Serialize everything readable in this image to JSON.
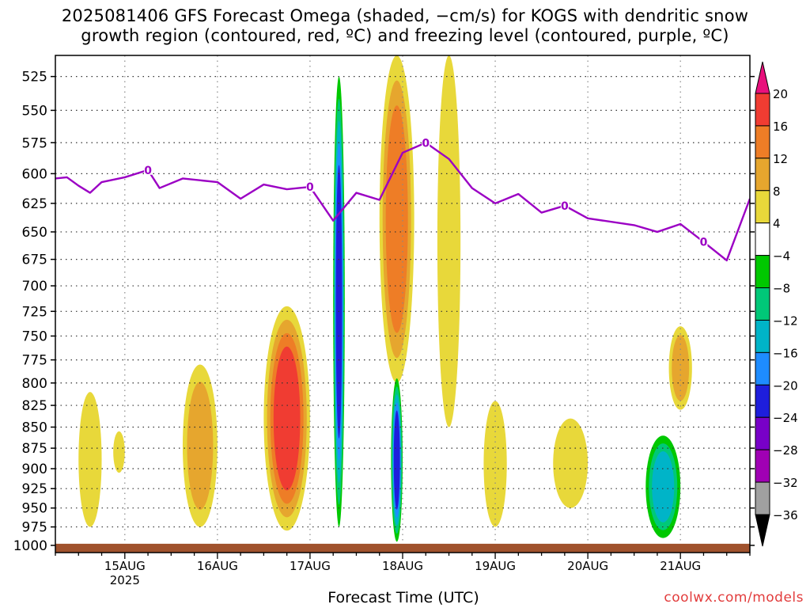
{
  "title": {
    "line1": "2025081406 GFS Forecast Omega (shaded, −cm/s) for KOGS with dendritic snow",
    "line2": "growth region (contoured, red, ºC) and freezing level (contoured, purple, ºC)"
  },
  "footer": {
    "xlabel": "Forecast Time (UTC)",
    "credit": "coolwx.com/models"
  },
  "colors": {
    "freezing_level": "#9b00c4",
    "ground": "#a0522d",
    "grid": "#333333"
  },
  "chart_data": {
    "type": "heatmap",
    "title": "2025081406 GFS Forecast Omega (shaded, −cm/s) for KOGS with dendritic snow growth region (contoured, red, ºC) and freezing level (contoured, purple, ºC)",
    "xlabel": "Forecast Time (UTC)",
    "ylabel": "",
    "x_ticks": [
      "15AUG",
      "16AUG",
      "17AUG",
      "18AUG",
      "19AUG",
      "20AUG",
      "21AUG"
    ],
    "x_subtick": "2025",
    "xlim": [
      "2025-08-14 06:00",
      "2025-08-21 18:00"
    ],
    "y_ticks": [
      525,
      550,
      575,
      600,
      625,
      650,
      675,
      700,
      725,
      750,
      775,
      800,
      825,
      850,
      875,
      900,
      925,
      950,
      975,
      1000
    ],
    "ylim": [
      1010,
      510
    ],
    "colorbar": {
      "labels": [
        20,
        16,
        12,
        8,
        4,
        -4,
        -8,
        -12,
        -16,
        -20,
        -24,
        -28,
        -32,
        -36
      ],
      "bins": [
        {
          "range": ">20",
          "color": "#e8107c"
        },
        {
          "range": "16..20",
          "color": "#f03c32"
        },
        {
          "range": "12..16",
          "color": "#ee7d26"
        },
        {
          "range": "8..12",
          "color": "#e6a62e"
        },
        {
          "range": "4..8",
          "color": "#e8d83a"
        },
        {
          "range": "-4..4",
          "color": "#ffffff"
        },
        {
          "range": "-8..-4",
          "color": "#00c800"
        },
        {
          "range": "-12..-8",
          "color": "#00c878"
        },
        {
          "range": "-16..-12",
          "color": "#00b4c8"
        },
        {
          "range": "-20..-16",
          "color": "#1e8cff"
        },
        {
          "range": "-24..-20",
          "color": "#1e1edc"
        },
        {
          "range": "-28..-24",
          "color": "#7800c8"
        },
        {
          "range": "-32..-28",
          "color": "#a000b4"
        },
        {
          "range": "-36..-32",
          "color": "#a0a0a0"
        },
        {
          "range": "<-36",
          "color": "#000000"
        }
      ]
    },
    "freezing_level_contour": {
      "label": "0",
      "points": [
        [
          "08-14 06",
          604
        ],
        [
          "08-14 09",
          603
        ],
        [
          "08-14 12",
          610
        ],
        [
          "08-14 15",
          616
        ],
        [
          "08-14 18",
          607
        ],
        [
          "08-15 00",
          603
        ],
        [
          "08-15 06",
          597
        ],
        [
          "08-15 09",
          612
        ],
        [
          "08-15 15",
          604
        ],
        [
          "08-16 00",
          607
        ],
        [
          "08-16 06",
          621
        ],
        [
          "08-16 12",
          609
        ],
        [
          "08-16 18",
          613
        ],
        [
          "08-17 00",
          611
        ],
        [
          "08-17 06",
          640
        ],
        [
          "08-17 12",
          616
        ],
        [
          "08-17 18",
          622
        ],
        [
          "08-18 00",
          583
        ],
        [
          "08-18 06",
          575
        ],
        [
          "08-18 12",
          588
        ],
        [
          "08-18 18",
          612
        ],
        [
          "08-19 00",
          625
        ],
        [
          "08-19 06",
          617
        ],
        [
          "08-19 12",
          633
        ],
        [
          "08-19 18",
          627
        ],
        [
          "08-20 00",
          638
        ],
        [
          "08-20 12",
          644
        ],
        [
          "08-20 18",
          650
        ],
        [
          "08-21 00",
          643
        ],
        [
          "08-21 06",
          659
        ],
        [
          "08-21 12",
          676
        ],
        [
          "08-21 18",
          621
        ]
      ],
      "label_times": [
        "08-15 06",
        "08-17 00",
        "08-18 06",
        "08-19 18",
        "08-21 06"
      ]
    },
    "omega_cells": [
      {
        "t0": "08-14 12",
        "t1": "08-14 18",
        "p0": 810,
        "p1": 975,
        "value": 6
      },
      {
        "t0": "08-14 21",
        "t1": "08-15 00",
        "p0": 855,
        "p1": 905,
        "value": 5
      },
      {
        "t0": "08-15 15",
        "t1": "08-16 00",
        "p0": 780,
        "p1": 975,
        "value": 10
      },
      {
        "t0": "08-16 12",
        "t1": "08-17 00",
        "p0": 720,
        "p1": 980,
        "value": 18
      },
      {
        "t0": "08-17 06",
        "t1": "08-17 09",
        "p0": 525,
        "p1": 975,
        "value": -22
      },
      {
        "t0": "08-17 18",
        "t1": "08-18 03",
        "p0": 510,
        "p1": 800,
        "value": 14
      },
      {
        "t0": "08-18 09",
        "t1": "08-18 15",
        "p0": 510,
        "p1": 850,
        "value": 6
      },
      {
        "t0": "08-17 21",
        "t1": "08-18 00",
        "p0": 795,
        "p1": 995,
        "value": -22
      },
      {
        "t0": "08-18 21",
        "t1": "08-19 03",
        "p0": 820,
        "p1": 975,
        "value": 6
      },
      {
        "t0": "08-19 15",
        "t1": "08-20 00",
        "p0": 840,
        "p1": 950,
        "value": 6
      },
      {
        "t0": "08-20 15",
        "t1": "08-21 00",
        "p0": 860,
        "p1": 990,
        "value": -14
      },
      {
        "t0": "08-20 21",
        "t1": "08-21 03",
        "p0": 740,
        "p1": 830,
        "value": 10
      }
    ]
  }
}
